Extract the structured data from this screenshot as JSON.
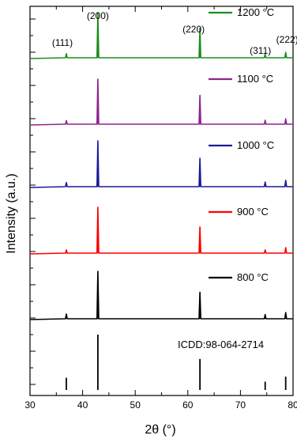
{
  "chart_data": {
    "type": "line",
    "title": "",
    "xlabel": "2θ (°)",
    "ylabel": "Intensity (a.u.)",
    "xlim": [
      30,
      80
    ],
    "xticks": [
      30,
      40,
      50,
      60,
      70,
      80
    ],
    "x_tick_labels": [
      "30",
      "40",
      "50",
      "60",
      "70",
      "80"
    ],
    "y_tick_labels": [],
    "grid": false,
    "legend": "inline labels on each stacked panel",
    "peak_positions": [
      36.9,
      42.9,
      62.3,
      74.7,
      78.6
    ],
    "peak_labels": [
      "(111)",
      "(200)",
      "(220)",
      "(311)",
      "(222)"
    ],
    "series": [
      {
        "name": "ICDD:98-064-2714",
        "color": "#000000",
        "style": "sticks",
        "peaks": [
          {
            "x": 36.9,
            "y": 22
          },
          {
            "x": 42.9,
            "y": 100
          },
          {
            "x": 62.3,
            "y": 56
          },
          {
            "x": 74.7,
            "y": 15
          },
          {
            "x": 78.6,
            "y": 24
          }
        ]
      },
      {
        "name": "800 °C",
        "color": "#000000",
        "style": "pattern",
        "peaks": [
          {
            "x": 36.9,
            "y": 10
          },
          {
            "x": 42.9,
            "y": 100
          },
          {
            "x": 62.3,
            "y": 56
          },
          {
            "x": 74.7,
            "y": 9
          },
          {
            "x": 78.6,
            "y": 13
          }
        ]
      },
      {
        "name": "900 °C",
        "color": "#ff0000",
        "style": "pattern",
        "peaks": [
          {
            "x": 36.9,
            "y": 7
          },
          {
            "x": 42.9,
            "y": 100
          },
          {
            "x": 62.3,
            "y": 57
          },
          {
            "x": 74.7,
            "y": 7
          },
          {
            "x": 78.6,
            "y": 12
          }
        ]
      },
      {
        "name": "1000 °C",
        "color": "#1a1a9a",
        "style": "pattern",
        "peaks": [
          {
            "x": 36.9,
            "y": 9
          },
          {
            "x": 42.9,
            "y": 100
          },
          {
            "x": 62.3,
            "y": 62
          },
          {
            "x": 74.7,
            "y": 10
          },
          {
            "x": 78.6,
            "y": 14
          }
        ]
      },
      {
        "name": "1100 °C",
        "color": "#8e238e",
        "style": "pattern",
        "peaks": [
          {
            "x": 36.9,
            "y": 8
          },
          {
            "x": 42.9,
            "y": 100
          },
          {
            "x": 62.3,
            "y": 64
          },
          {
            "x": 74.7,
            "y": 9
          },
          {
            "x": 78.6,
            "y": 12
          }
        ]
      },
      {
        "name": "1200 °C",
        "color": "#1e8c1e",
        "style": "pattern",
        "peaks": [
          {
            "x": 36.9,
            "y": 9
          },
          {
            "x": 42.9,
            "y": 100
          },
          {
            "x": 62.3,
            "y": 66
          },
          {
            "x": 74.7,
            "y": 8
          },
          {
            "x": 78.6,
            "y": 12
          }
        ]
      }
    ]
  }
}
